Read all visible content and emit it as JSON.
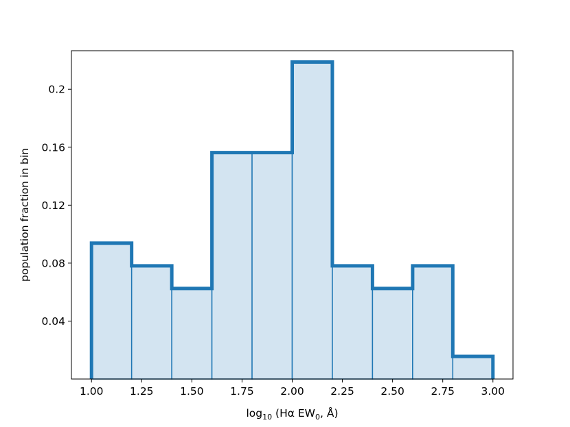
{
  "chart_data": {
    "type": "histogram",
    "bin_edges": [
      1.0,
      1.2,
      1.4,
      1.6,
      1.8,
      2.0,
      2.2,
      2.4,
      2.6,
      2.8,
      3.0
    ],
    "values": [
      0.0938,
      0.0781,
      0.0625,
      0.1563,
      0.1563,
      0.2188,
      0.0781,
      0.0625,
      0.0781,
      0.0156
    ],
    "xlim": [
      0.9,
      3.1
    ],
    "ylim": [
      0.0,
      0.2266
    ],
    "x_ticks": [
      1.0,
      1.25,
      1.5,
      1.75,
      2.0,
      2.25,
      2.5,
      2.75,
      3.0
    ],
    "x_tick_labels": [
      "1.00",
      "1.25",
      "1.50",
      "1.75",
      "2.00",
      "2.25",
      "2.50",
      "2.75",
      "3.00"
    ],
    "y_ticks": [
      0.04,
      0.08,
      0.12,
      0.16,
      0.2
    ],
    "y_tick_labels": [
      "0.04",
      "0.08",
      "0.12",
      "0.16",
      "0.2"
    ],
    "xlabel": {
      "prefix": "log",
      "prefix_sub": "10",
      "middle": " (Hα EW",
      "middle_sub": "0",
      "suffix": ", Å)"
    },
    "ylabel": "population fraction in bin",
    "grid": false,
    "legend": "none",
    "colors": {
      "fill": "#d3e4f1",
      "edge": "#1f77b4",
      "step_outline": "#1f77b4"
    }
  }
}
